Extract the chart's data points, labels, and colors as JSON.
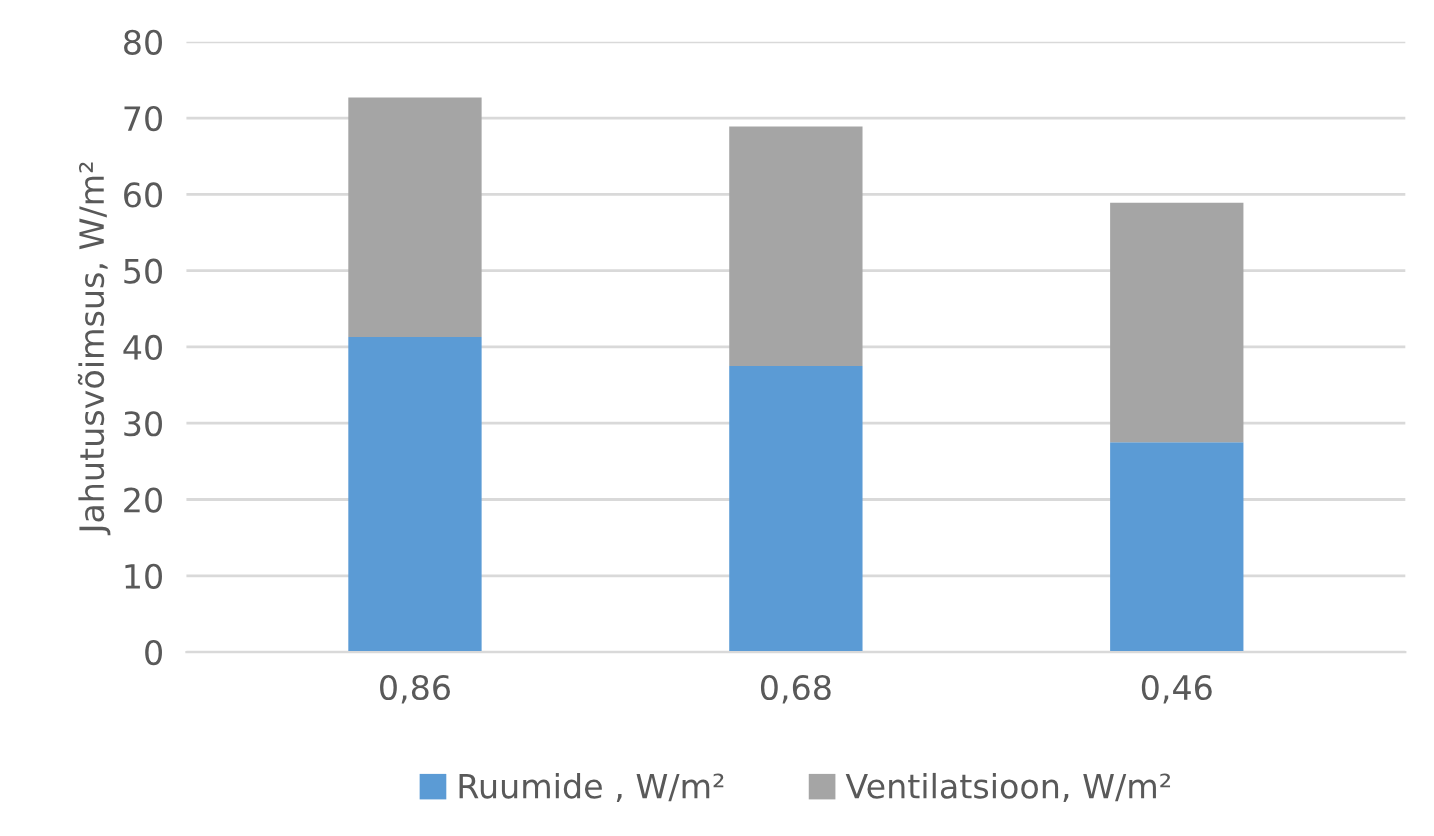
{
  "chart_data": {
    "type": "bar",
    "stacked": true,
    "ylabel": "Jahutusvõimsus, W/m²",
    "categories": [
      "0,86",
      "0,68",
      "0,46"
    ],
    "series": [
      {
        "name": "Ruumide , W/m²",
        "color": "#5b9bd5",
        "values": [
          41.3,
          37.5,
          27.5
        ]
      },
      {
        "name": "Ventilatsioon, W/m²",
        "color": "#a5a5a5",
        "values": [
          31.4,
          31.4,
          31.4
        ]
      }
    ],
    "ylim": [
      0,
      80
    ],
    "yticks": [
      0,
      10,
      20,
      30,
      40,
      50,
      60,
      70,
      80
    ],
    "grid": "y",
    "legend": "bottom"
  }
}
